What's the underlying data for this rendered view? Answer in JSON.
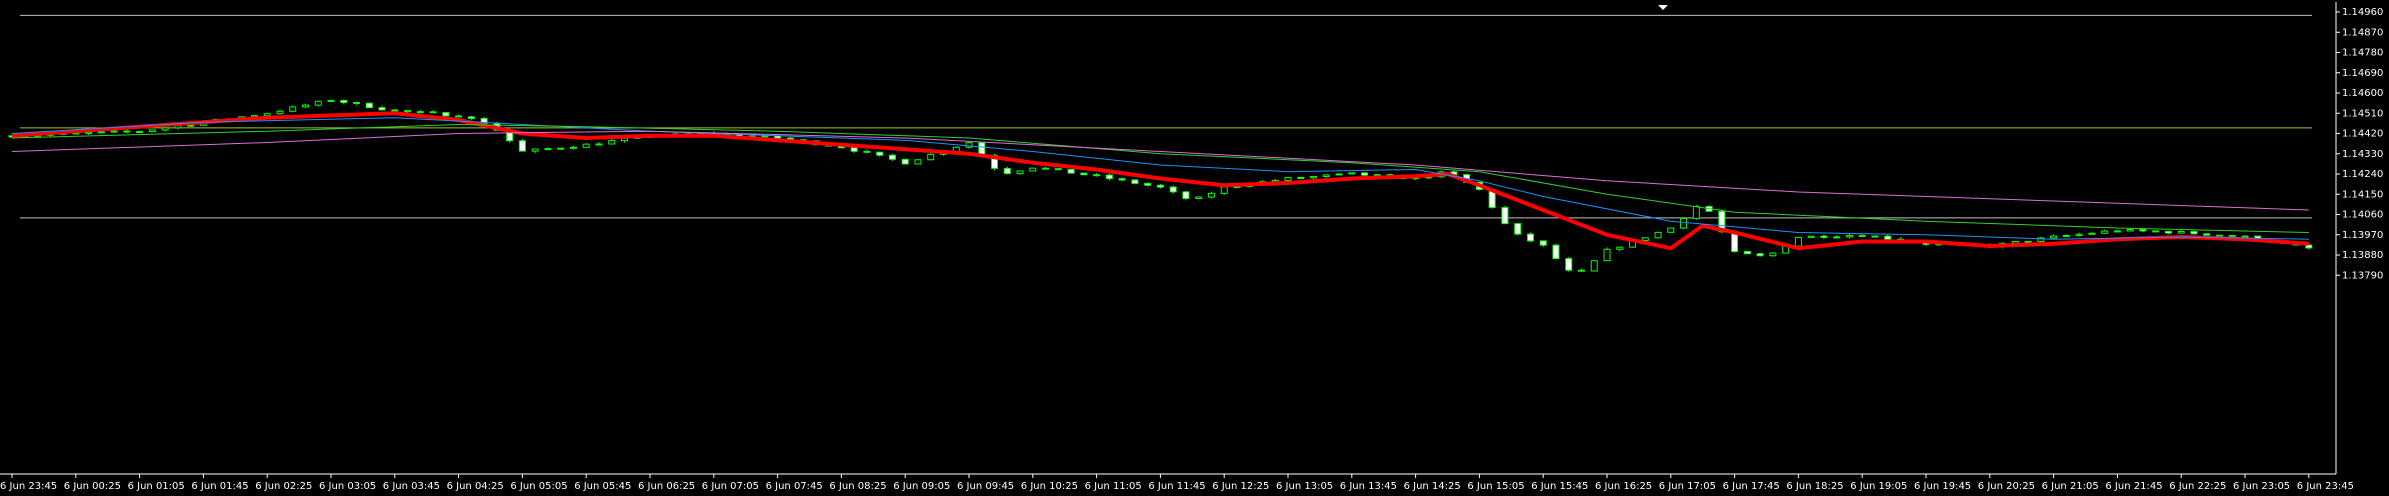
{
  "chart_data": {
    "type": "candlestick",
    "title": "",
    "xlabel": "",
    "ylabel": "",
    "ylim": [
      1.1372,
      1.1497
    ],
    "y_ticks": [
      "1.14960",
      "1.14870",
      "1.14780",
      "1.14690",
      "1.14600",
      "1.14510",
      "1.14420",
      "1.14330",
      "1.14240",
      "1.14150",
      "1.14060",
      "1.13970",
      "1.13880",
      "1.13790"
    ],
    "x_ticks": [
      "6 Jun 23:45",
      "6 Jun 00:25",
      "6 Jun 01:05",
      "6 Jun 01:45",
      "6 Jun 02:25",
      "6 Jun 03:05",
      "6 Jun 03:45",
      "6 Jun 04:25",
      "6 Jun 05:05",
      "6 Jun 05:45",
      "6 Jun 06:25",
      "6 Jun 07:05",
      "6 Jun 07:45",
      "6 Jun 08:25",
      "6 Jun 09:05",
      "6 Jun 09:45",
      "6 Jun 10:25",
      "6 Jun 11:05",
      "6 Jun 11:45",
      "6 Jun 12:25",
      "6 Jun 13:05",
      "6 Jun 13:45",
      "6 Jun 14:25",
      "6 Jun 15:05",
      "6 Jun 15:45",
      "6 Jun 16:25",
      "6 Jun 17:05",
      "6 Jun 17:45",
      "6 Jun 18:25",
      "6 Jun 19:05",
      "6 Jun 19:45",
      "6 Jun 20:25",
      "6 Jun 21:05",
      "6 Jun 21:45",
      "6 Jun 22:25",
      "6 Jun 23:05",
      "6 Jun 23:45"
    ],
    "horizontal_levels": [
      {
        "value": 1.14945,
        "color": "#c0c0c0"
      },
      {
        "value": 1.14445,
        "color": "#9acd32"
      },
      {
        "value": 1.14045,
        "color": "#c0c0c0"
      }
    ],
    "close_path": [
      [
        0,
        1.1441
      ],
      [
        2,
        1.1443
      ],
      [
        4,
        1.1451
      ],
      [
        5,
        1.1457
      ],
      [
        6,
        1.1452
      ],
      [
        7,
        1.145
      ],
      [
        7.5,
        1.1446
      ],
      [
        8,
        1.1434
      ],
      [
        9,
        1.1437
      ],
      [
        10,
        1.1441
      ],
      [
        11,
        1.1442
      ],
      [
        12,
        1.144
      ],
      [
        13,
        1.1436
      ],
      [
        14,
        1.1429
      ],
      [
        15,
        1.1438
      ],
      [
        15.5,
        1.1424
      ],
      [
        16,
        1.1427
      ],
      [
        17,
        1.1423
      ],
      [
        18,
        1.1418
      ],
      [
        18.5,
        1.1412
      ],
      [
        19,
        1.1418
      ],
      [
        20,
        1.1422
      ],
      [
        21,
        1.1424
      ],
      [
        22,
        1.1422
      ],
      [
        22.5,
        1.1425
      ],
      [
        23,
        1.1417
      ],
      [
        23.5,
        1.1398
      ],
      [
        24,
        1.1392
      ],
      [
        24.5,
        1.1378
      ],
      [
        25,
        1.139
      ],
      [
        26,
        1.14
      ],
      [
        26.5,
        1.1412
      ],
      [
        27,
        1.1389
      ],
      [
        27.5,
        1.1387
      ],
      [
        28,
        1.1396
      ],
      [
        29,
        1.1397
      ],
      [
        30,
        1.1393
      ],
      [
        31,
        1.1392
      ],
      [
        32,
        1.1396
      ],
      [
        33,
        1.1399
      ],
      [
        34,
        1.1398
      ],
      [
        35,
        1.1396
      ],
      [
        36,
        1.1391
      ]
    ],
    "series": [
      {
        "name": "",
        "color": "#ff0000",
        "width": 4,
        "points": [
          [
            0,
            1.1441
          ],
          [
            2,
            1.1445
          ],
          [
            4,
            1.1449
          ],
          [
            5,
            1.145
          ],
          [
            6,
            1.1451
          ],
          [
            7,
            1.1448
          ],
          [
            8,
            1.1442
          ],
          [
            9,
            1.144
          ],
          [
            10,
            1.1441
          ],
          [
            11,
            1.1441
          ],
          [
            12,
            1.1439
          ],
          [
            13,
            1.1437
          ],
          [
            14,
            1.1435
          ],
          [
            15,
            1.1433
          ],
          [
            16,
            1.1429
          ],
          [
            17,
            1.1426
          ],
          [
            18,
            1.1422
          ],
          [
            19,
            1.1419
          ],
          [
            20,
            1.142
          ],
          [
            21,
            1.1422
          ],
          [
            22,
            1.1423
          ],
          [
            22.5,
            1.1424
          ],
          [
            23,
            1.1419
          ],
          [
            24,
            1.1408
          ],
          [
            25,
            1.1397
          ],
          [
            26,
            1.1391
          ],
          [
            26.5,
            1.1401
          ],
          [
            27,
            1.1398
          ],
          [
            28,
            1.1391
          ],
          [
            29,
            1.1394
          ],
          [
            30,
            1.1394
          ],
          [
            31,
            1.1392
          ],
          [
            32,
            1.1393
          ],
          [
            33,
            1.1395
          ],
          [
            34,
            1.1396
          ],
          [
            35,
            1.1395
          ],
          [
            36,
            1.1393
          ]
        ]
      },
      {
        "name": "",
        "color": "#1e90ff",
        "width": 1,
        "points": [
          [
            0,
            1.1442
          ],
          [
            3,
            1.1447
          ],
          [
            6,
            1.1449
          ],
          [
            8,
            1.1446
          ],
          [
            10,
            1.1443
          ],
          [
            12,
            1.1441
          ],
          [
            14,
            1.1439
          ],
          [
            16,
            1.1434
          ],
          [
            18,
            1.1428
          ],
          [
            20,
            1.1425
          ],
          [
            22,
            1.1426
          ],
          [
            23,
            1.1421
          ],
          [
            24,
            1.1414
          ],
          [
            26,
            1.1403
          ],
          [
            28,
            1.1398
          ],
          [
            30,
            1.1397
          ],
          [
            32,
            1.1395
          ],
          [
            34,
            1.1396
          ],
          [
            36,
            1.1395
          ]
        ]
      },
      {
        "name": "",
        "color": "#32cd32",
        "width": 1,
        "points": [
          [
            0,
            1.144
          ],
          [
            4,
            1.1443
          ],
          [
            7,
            1.1446
          ],
          [
            9,
            1.1445
          ],
          [
            12,
            1.1443
          ],
          [
            15,
            1.144
          ],
          [
            18,
            1.1433
          ],
          [
            21,
            1.1429
          ],
          [
            23,
            1.1425
          ],
          [
            25,
            1.1415
          ],
          [
            27,
            1.1407
          ],
          [
            30,
            1.1403
          ],
          [
            33,
            1.14
          ],
          [
            36,
            1.1398
          ]
        ]
      },
      {
        "name": "",
        "color": "#da70d6",
        "width": 1,
        "points": [
          [
            0,
            1.1434
          ],
          [
            4,
            1.1438
          ],
          [
            7,
            1.1442
          ],
          [
            10,
            1.1443
          ],
          [
            14,
            1.144
          ],
          [
            18,
            1.1434
          ],
          [
            22,
            1.1428
          ],
          [
            25,
            1.1421
          ],
          [
            28,
            1.1416
          ],
          [
            32,
            1.1412
          ],
          [
            36,
            1.1408
          ]
        ]
      }
    ]
  }
}
